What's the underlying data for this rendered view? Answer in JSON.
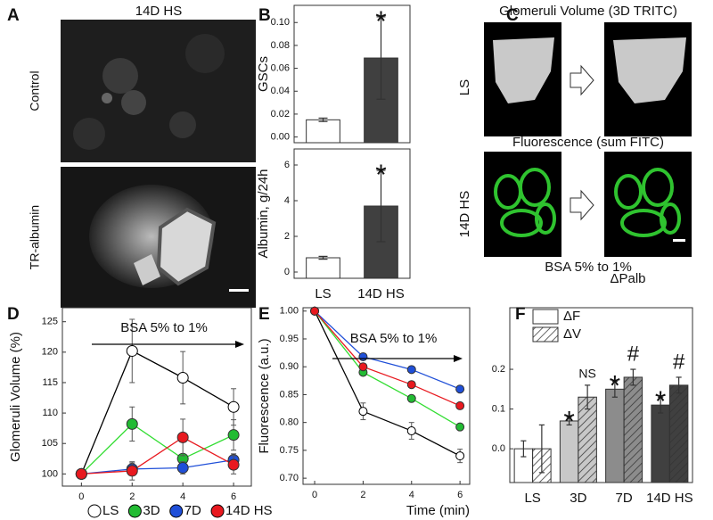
{
  "figure": {
    "panel_a": {
      "label": "A",
      "title": "14D HS",
      "rows": [
        "Control",
        "TR-albumin"
      ]
    },
    "panel_c": {
      "label": "C",
      "rows": [
        {
          "title": "Glomeruli Volume (3D TRITC)",
          "label": "LS"
        },
        {
          "title": "Fluorescence (sum FITC)",
          "label": "14D HS"
        }
      ],
      "caption": "BSA 5% to 1%"
    }
  },
  "chart_data": [
    {
      "type": "bar",
      "panel_label": "B",
      "ylabel": "GSCs",
      "series": [
        {
          "values": [
            0.015,
            0.069
          ],
          "errors": [
            0.0015,
            0.036
          ],
          "colors": [
            "#ffffff",
            "#404040"
          ],
          "markers": [
            null,
            "*"
          ]
        }
      ],
      "ylim": [
        -0.005,
        0.115
      ],
      "yticks": [
        {
          "value": 0,
          "label": "0.00"
        },
        {
          "value": 0.02,
          "label": "0.02"
        },
        {
          "value": 0.04,
          "label": "0.04"
        },
        {
          "value": 0.06,
          "label": "0.06"
        },
        {
          "value": 0.08,
          "label": "0.08"
        },
        {
          "value": 0.1,
          "label": "0.10"
        }
      ]
    },
    {
      "type": "bar",
      "ylabel": "Albumin, g/24h",
      "categories": [
        "LS",
        "14D HS"
      ],
      "series": [
        {
          "values": [
            0.8,
            3.7
          ],
          "errors": [
            0.08,
            2.0
          ],
          "colors": [
            "#ffffff",
            "#404040"
          ],
          "markers": [
            null,
            "*"
          ]
        }
      ],
      "ylim": [
        -0.35,
        6.9
      ],
      "yticks": [
        0,
        2,
        4,
        6
      ]
    },
    {
      "type": "line",
      "panel_label": "D",
      "ylabel": "Glomeruli Volume (%)",
      "annotation": "BSA 5% to 1%",
      "x": [
        0,
        2,
        4,
        6
      ],
      "xlim": [
        -0.75,
        6.7
      ],
      "xticks": [
        0,
        2,
        4,
        6
      ],
      "ylim": [
        98,
        127.3
      ],
      "yticks": [
        100,
        105,
        110,
        115,
        120,
        125
      ],
      "legend": "bottom",
      "series": [
        {
          "name": "LS",
          "color": "#ffffff",
          "line_color": "#000000",
          "values": [
            100,
            120.2,
            115.8,
            111
          ],
          "errors": [
            0,
            5.2,
            4.3,
            3
          ]
        },
        {
          "name": "3D",
          "color": "#22bb33",
          "line_color": "#33dd33",
          "values": [
            100,
            108.2,
            102.5,
            106.4
          ],
          "errors": [
            0,
            2.8,
            0.5,
            2.5
          ]
        },
        {
          "name": "7D",
          "color": "#1f4fd8",
          "line_color": "#1f4fd8",
          "values": [
            100,
            100.8,
            101,
            102.3
          ],
          "errors": [
            0,
            1,
            1,
            1
          ]
        },
        {
          "name": "14D HS",
          "color": "#e8191f",
          "line_color": "#e8191f",
          "values": [
            100,
            100.5,
            106,
            101.5
          ],
          "errors": [
            0,
            1.5,
            3,
            1.5
          ]
        }
      ]
    },
    {
      "type": "line",
      "panel_label": "E",
      "ylabel": "Fluorescence (a.u.)",
      "xlabel": "Time (min)",
      "annotation": "BSA 5% to 1%",
      "x": [
        0,
        2,
        4,
        6
      ],
      "xlim": [
        -0.48,
        6.4
      ],
      "xticks": [
        0,
        2,
        4,
        6
      ],
      "ylim": [
        0.689,
        1.006
      ],
      "yticks": [
        {
          "value": 0.7,
          "label": "0.70"
        },
        {
          "value": 0.75,
          "label": "0.75"
        },
        {
          "value": 0.8,
          "label": "0.80"
        },
        {
          "value": 0.85,
          "label": "0.85"
        },
        {
          "value": 0.9,
          "label": "0.90"
        },
        {
          "value": 0.95,
          "label": "0.95"
        },
        {
          "value": 1,
          "label": "1.00"
        }
      ],
      "series": [
        {
          "color": "#ffffff",
          "line_color": "#000000",
          "values": [
            1,
            0.82,
            0.785,
            0.74
          ],
          "errors": [
            0,
            0.015,
            0.015,
            0.012
          ]
        },
        {
          "color": "#22bb33",
          "line_color": "#33dd33",
          "values": [
            1,
            0.89,
            0.843,
            0.792
          ],
          "errors": [
            0,
            0.005,
            0.005,
            0.005
          ]
        },
        {
          "color": "#1f4fd8",
          "line_color": "#1f4fd8",
          "values": [
            1,
            0.918,
            0.895,
            0.86
          ],
          "errors": [
            0,
            0.005,
            0.005,
            0.005
          ]
        },
        {
          "color": "#e8191f",
          "line_color": "#e8191f",
          "values": [
            1,
            0.9,
            0.868,
            0.83
          ],
          "errors": [
            0,
            0.005,
            0.005,
            0.005
          ]
        }
      ]
    },
    {
      "type": "bar",
      "panel_label": "F",
      "title": "ΔPalb",
      "categories": [
        "LS",
        "3D",
        "7D",
        "14D HS"
      ],
      "legend": "top-left",
      "series": [
        {
          "name": "ΔF",
          "values": [
            0,
            0.07,
            0.15,
            0.11
          ],
          "errors": [
            0.02,
            0.01,
            0.02,
            0.02
          ],
          "colors": [
            "#ffffff",
            "#c8c8c8",
            "#8c8c8c",
            "#404040"
          ],
          "markers": [
            null,
            "*",
            "*",
            "*"
          ]
        },
        {
          "name": "ΔV",
          "hatch": true,
          "values": [
            0,
            0.13,
            0.18,
            0.16
          ],
          "errors": [
            0.06,
            0.03,
            0.02,
            0.02
          ],
          "colors": [
            "#ffffff",
            "#c8c8c8",
            "#8c8c8c",
            "#404040"
          ],
          "markers": [
            null,
            "NS",
            "#",
            "#"
          ]
        }
      ],
      "ylim": [
        -0.085,
        0.355
      ],
      "yticks": [
        {
          "value": 0,
          "label": "0.0"
        },
        {
          "value": 0.1,
          "label": "0.1"
        },
        {
          "value": 0.2,
          "label": "0.2"
        }
      ]
    }
  ]
}
